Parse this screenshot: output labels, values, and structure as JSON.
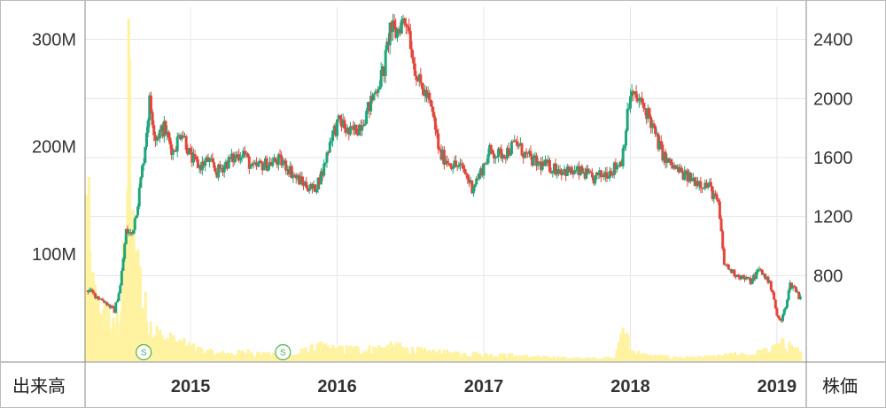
{
  "chart_data": {
    "type": "candlestick",
    "title": "",
    "left_axis_label": "出来高",
    "right_axis_label": "株価",
    "x_ticks": [
      "2015",
      "2016",
      "2017",
      "2018",
      "2019"
    ],
    "x_range": [
      2014.28,
      2019.2
    ],
    "left_ticks": [
      "100M",
      "200M",
      "300M"
    ],
    "left_tick_values": [
      100,
      200,
      300
    ],
    "left_range_millions": [
      0,
      330
    ],
    "right_ticks": [
      "800",
      "1200",
      "1600",
      "2000",
      "2400"
    ],
    "right_tick_values": [
      800,
      1200,
      1600,
      2000,
      2400
    ],
    "right_range": [
      220,
      2620
    ],
    "grid": true,
    "colors": {
      "up": "#1fa67a",
      "down": "#e4463c",
      "volume": "#fff2a0",
      "grid": "#e6e6e6",
      "axis": "#888888"
    },
    "split_markers": [
      {
        "date": 2014.68,
        "label": "S"
      },
      {
        "date": 2015.63,
        "label": "S"
      }
    ],
    "price_close": [
      [
        2014.3,
        700
      ],
      [
        2014.36,
        660
      ],
      [
        2014.42,
        620
      ],
      [
        2014.48,
        560
      ],
      [
        2014.52,
        730
      ],
      [
        2014.56,
        1100
      ],
      [
        2014.6,
        1080
      ],
      [
        2014.64,
        1300
      ],
      [
        2014.68,
        1600
      ],
      [
        2014.72,
        1980
      ],
      [
        2014.76,
        1740
      ],
      [
        2014.82,
        1800
      ],
      [
        2014.88,
        1640
      ],
      [
        2014.94,
        1790
      ],
      [
        2015.0,
        1600
      ],
      [
        2015.06,
        1540
      ],
      [
        2015.12,
        1580
      ],
      [
        2015.18,
        1500
      ],
      [
        2015.24,
        1560
      ],
      [
        2015.3,
        1600
      ],
      [
        2015.36,
        1640
      ],
      [
        2015.42,
        1520
      ],
      [
        2015.48,
        1550
      ],
      [
        2015.54,
        1560
      ],
      [
        2015.6,
        1580
      ],
      [
        2015.66,
        1540
      ],
      [
        2015.72,
        1460
      ],
      [
        2015.78,
        1420
      ],
      [
        2015.84,
        1380
      ],
      [
        2015.9,
        1500
      ],
      [
        2015.96,
        1750
      ],
      [
        2016.02,
        1850
      ],
      [
        2016.08,
        1760
      ],
      [
        2016.14,
        1800
      ],
      [
        2016.2,
        1900
      ],
      [
        2016.26,
        2050
      ],
      [
        2016.32,
        2200
      ],
      [
        2016.36,
        2480
      ],
      [
        2016.4,
        2440
      ],
      [
        2016.44,
        2520
      ],
      [
        2016.48,
        2530
      ],
      [
        2016.52,
        2250
      ],
      [
        2016.56,
        2100
      ],
      [
        2016.62,
        2000
      ],
      [
        2016.66,
        1850
      ],
      [
        2016.7,
        1620
      ],
      [
        2016.78,
        1560
      ],
      [
        2016.86,
        1520
      ],
      [
        2016.92,
        1400
      ],
      [
        2016.98,
        1500
      ],
      [
        2017.04,
        1640
      ],
      [
        2017.1,
        1620
      ],
      [
        2017.16,
        1640
      ],
      [
        2017.22,
        1700
      ],
      [
        2017.28,
        1620
      ],
      [
        2017.36,
        1560
      ],
      [
        2017.44,
        1540
      ],
      [
        2017.52,
        1520
      ],
      [
        2017.6,
        1500
      ],
      [
        2017.68,
        1500
      ],
      [
        2017.74,
        1450
      ],
      [
        2017.8,
        1480
      ],
      [
        2017.88,
        1520
      ],
      [
        2017.94,
        1580
      ],
      [
        2018.0,
        2030
      ],
      [
        2018.06,
        1980
      ],
      [
        2018.12,
        1900
      ],
      [
        2018.18,
        1720
      ],
      [
        2018.24,
        1580
      ],
      [
        2018.3,
        1530
      ],
      [
        2018.38,
        1470
      ],
      [
        2018.46,
        1440
      ],
      [
        2018.54,
        1400
      ],
      [
        2018.6,
        1280
      ],
      [
        2018.64,
        880
      ],
      [
        2018.7,
        820
      ],
      [
        2018.76,
        790
      ],
      [
        2018.82,
        760
      ],
      [
        2018.88,
        840
      ],
      [
        2018.93,
        780
      ],
      [
        2018.97,
        700
      ],
      [
        2019.0,
        520
      ],
      [
        2019.03,
        490
      ],
      [
        2019.06,
        600
      ],
      [
        2019.09,
        740
      ],
      [
        2019.12,
        720
      ],
      [
        2019.15,
        660
      ]
    ],
    "volume_millions": [
      [
        2014.3,
        165
      ],
      [
        2014.32,
        80
      ],
      [
        2014.36,
        60
      ],
      [
        2014.4,
        45
      ],
      [
        2014.44,
        50
      ],
      [
        2014.48,
        30
      ],
      [
        2014.52,
        55
      ],
      [
        2014.56,
        120
      ],
      [
        2014.58,
        300
      ],
      [
        2014.6,
        130
      ],
      [
        2014.64,
        110
      ],
      [
        2014.68,
        60
      ],
      [
        2014.72,
        40
      ],
      [
        2014.8,
        25
      ],
      [
        2014.9,
        20
      ],
      [
        2015.0,
        15
      ],
      [
        2015.1,
        10
      ],
      [
        2015.2,
        8
      ],
      [
        2015.3,
        8
      ],
      [
        2015.4,
        10
      ],
      [
        2015.5,
        7
      ],
      [
        2015.6,
        6
      ],
      [
        2015.7,
        6
      ],
      [
        2015.8,
        12
      ],
      [
        2015.9,
        15
      ],
      [
        2016.0,
        12
      ],
      [
        2016.1,
        13
      ],
      [
        2016.2,
        12
      ],
      [
        2016.3,
        14
      ],
      [
        2016.4,
        15
      ],
      [
        2016.5,
        12
      ],
      [
        2016.6,
        10
      ],
      [
        2016.7,
        9
      ],
      [
        2016.8,
        8
      ],
      [
        2016.9,
        8
      ],
      [
        2017.0,
        7
      ],
      [
        2017.1,
        6
      ],
      [
        2017.2,
        6
      ],
      [
        2017.3,
        5
      ],
      [
        2017.4,
        4
      ],
      [
        2017.5,
        4
      ],
      [
        2017.6,
        3
      ],
      [
        2017.7,
        3
      ],
      [
        2017.8,
        3
      ],
      [
        2017.9,
        5
      ],
      [
        2017.96,
        35
      ],
      [
        2018.0,
        12
      ],
      [
        2018.1,
        6
      ],
      [
        2018.2,
        5
      ],
      [
        2018.3,
        4
      ],
      [
        2018.4,
        4
      ],
      [
        2018.5,
        4
      ],
      [
        2018.6,
        5
      ],
      [
        2018.7,
        7
      ],
      [
        2018.8,
        6
      ],
      [
        2018.9,
        10
      ],
      [
        2019.0,
        14
      ],
      [
        2019.06,
        20
      ],
      [
        2019.1,
        15
      ],
      [
        2019.15,
        10
      ]
    ]
  }
}
